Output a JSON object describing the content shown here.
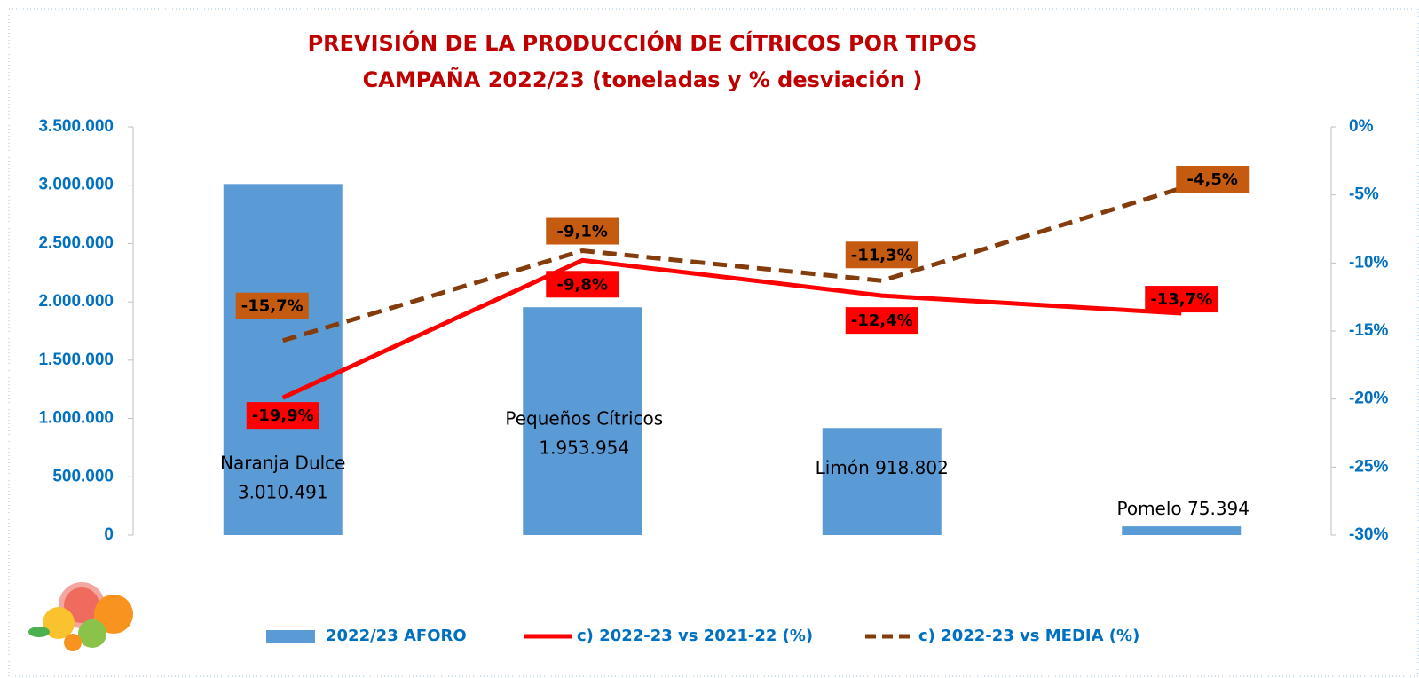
{
  "chart_data": {
    "type": "bar",
    "title": "PREVISIÓN DE LA PRODUCCIÓN DE CÍTRICOS POR TIPOS",
    "subtitle": "CAMPAÑA 2022/23 (toneladas y % desviación )",
    "categories": [
      "Naranja Dulce",
      "Pequeños Cítricos",
      "Limón",
      "Pomelo"
    ],
    "series": [
      {
        "name": "2022/23 AFORO",
        "type": "bar",
        "color": "#5b9bd5",
        "values": [
          3010491,
          1953954,
          918802,
          75394
        ],
        "value_labels": [
          "3.010.491",
          "1.953.954",
          "918.802",
          "75.394"
        ]
      },
      {
        "name": "c) 2022-23 vs 2021-22 (%)",
        "type": "line",
        "axis": "y2",
        "color": "#ff0000",
        "dash": false,
        "values": [
          -19.9,
          -9.8,
          -12.4,
          -13.7
        ],
        "value_labels": [
          "-19,9%",
          "-9,8%",
          "-12,4%",
          "-13,7%"
        ]
      },
      {
        "name": "c) 2022-23 vs MEDIA (%)",
        "type": "line",
        "axis": "y2",
        "color": "#843c0c",
        "dash": true,
        "label_color": "#c55a11",
        "values": [
          -15.7,
          -9.1,
          -11.3,
          -4.5
        ],
        "value_labels": [
          "-15,7%",
          "-9,1%",
          "-11,3%",
          "-4,5%"
        ]
      }
    ],
    "ylim": [
      0,
      3500000
    ],
    "yticks": [
      0,
      {
        "value": 500000,
        "label": "500.000"
      },
      {
        "value": 1000000,
        "label": "1.000.000"
      },
      {
        "value": 1500000,
        "label": "1.500.000"
      },
      {
        "value": 2000000,
        "label": "2.000.000"
      },
      {
        "value": 2500000,
        "label": "2.500.000"
      },
      {
        "value": 3000000,
        "label": "3.000.000"
      },
      {
        "value": 3500000,
        "label": "3.500.000"
      }
    ],
    "y2lim": [
      -30,
      0
    ],
    "y2ticks": [
      {
        "value": -30,
        "label": "-30%"
      },
      {
        "value": -25,
        "label": "-25%"
      },
      {
        "value": -20,
        "label": "-20%"
      },
      {
        "value": -15,
        "label": "-15%"
      },
      {
        "value": -10,
        "label": "-10%"
      },
      {
        "value": -5,
        "label": "-5%"
      },
      {
        "value": 0,
        "label": "0%"
      }
    ],
    "grid": false
  }
}
